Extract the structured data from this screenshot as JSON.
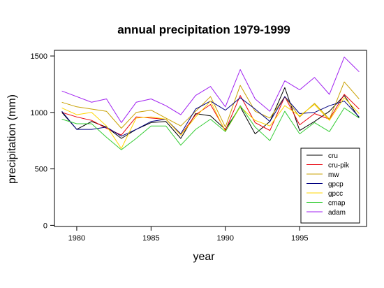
{
  "chart_data": {
    "type": "line",
    "title": "annual precipitation 1979-1999",
    "xlabel": "year",
    "ylabel": "precipitation (mm)",
    "xlim": [
      1978.5,
      1999.5
    ],
    "ylim": [
      -10,
      1550
    ],
    "x_ticks": [
      1980,
      1985,
      1990,
      1995
    ],
    "y_ticks": [
      0,
      500,
      1000,
      1500
    ],
    "legend_position": "bottom-right",
    "grid": false,
    "x": [
      1979,
      1980,
      1981,
      1982,
      1983,
      1984,
      1985,
      1986,
      1987,
      1988,
      1989,
      1990,
      1991,
      1992,
      1993,
      1994,
      1995,
      1996,
      1997,
      1998,
      1999
    ],
    "series": [
      {
        "name": "cru",
        "color": "#000000",
        "values": [
          1000,
          850,
          920,
          870,
          770,
          850,
          910,
          920,
          770,
          990,
          970,
          850,
          1050,
          810,
          920,
          1220,
          840,
          920,
          1010,
          1150,
          950
        ]
      },
      {
        "name": "cru-pik",
        "color": "#e8000b",
        "values": [
          1000,
          960,
          930,
          860,
          800,
          960,
          950,
          940,
          800,
          980,
          1070,
          840,
          1150,
          910,
          840,
          1140,
          890,
          990,
          940,
          1160,
          1030
        ]
      },
      {
        "name": "mw",
        "color": "#c8a000",
        "values": [
          1090,
          1050,
          1030,
          1010,
          860,
          1000,
          1020,
          950,
          880,
          1010,
          1140,
          870,
          1240,
          1010,
          950,
          1140,
          960,
          1080,
          940,
          1270,
          1120
        ]
      },
      {
        "name": "gpcp",
        "color": "#000080",
        "values": [
          1010,
          850,
          850,
          870,
          790,
          850,
          920,
          940,
          810,
          1030,
          1100,
          1020,
          1130,
          1030,
          920,
          1140,
          990,
          1000,
          1060,
          1100,
          960
        ]
      },
      {
        "name": "gpcc",
        "color": "#ffd700",
        "values": [
          1040,
          980,
          1000,
          880,
          680,
          950,
          960,
          940,
          800,
          960,
          1100,
          830,
          1050,
          930,
          880,
          1060,
          970,
          1070,
          930,
          1130,
          990
        ]
      },
      {
        "name": "cmap",
        "color": "#33cc33",
        "values": [
          940,
          900,
          900,
          780,
          670,
          770,
          880,
          880,
          710,
          850,
          940,
          830,
          1060,
          870,
          750,
          1010,
          810,
          910,
          830,
          1040,
          950
        ]
      },
      {
        "name": "adam",
        "color": "#a020f0",
        "values": [
          1190,
          1140,
          1090,
          1120,
          910,
          1090,
          1120,
          1060,
          980,
          1150,
          1230,
          1050,
          1380,
          1120,
          1010,
          1280,
          1200,
          1310,
          1160,
          1490,
          1360
        ]
      }
    ]
  }
}
